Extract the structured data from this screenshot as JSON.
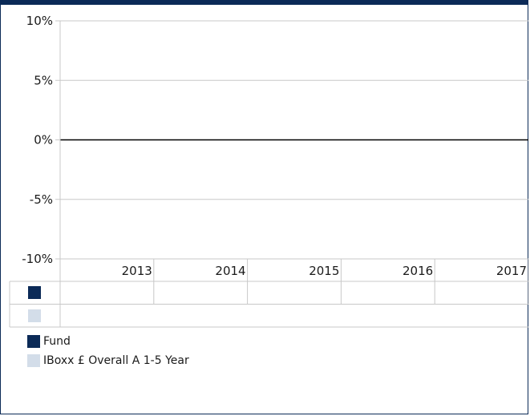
{
  "chart_data": {
    "type": "bar",
    "categories": [
      "2013",
      "2014",
      "2015",
      "2016",
      "2017"
    ],
    "ylim": [
      -10,
      10
    ],
    "yticks": [
      10,
      5,
      0,
      -5,
      -10
    ],
    "ytick_labels": [
      "10%",
      "5%",
      "0%",
      "-5%",
      "-10%"
    ],
    "series": [
      {
        "name": "Fund",
        "values": [
          null,
          null,
          null,
          null,
          null
        ],
        "color": "#0b2a57"
      },
      {
        "name": "IBoxx £ Overall A 1-5 Year",
        "values": [
          null,
          null,
          null,
          null,
          null
        ],
        "color": "#d3dde9"
      }
    ],
    "grid": true,
    "legend_position": "bottom-left"
  }
}
